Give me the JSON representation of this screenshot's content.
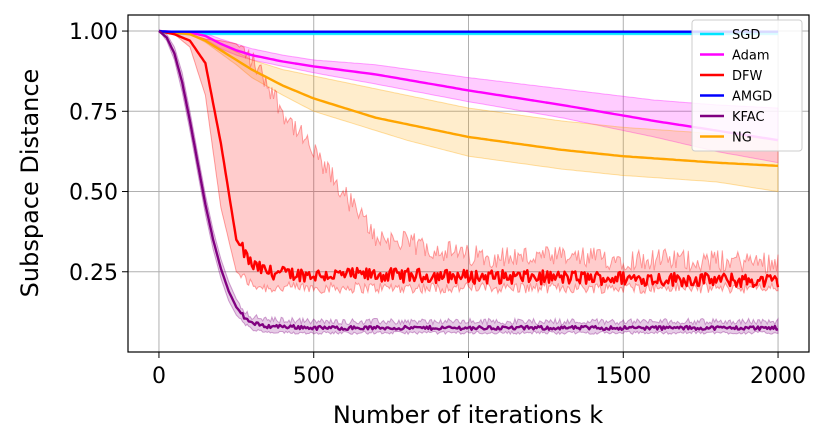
{
  "chart_data": {
    "type": "line",
    "title": "",
    "xlabel": "Number of iterations k",
    "ylabel": "Subspace Distance",
    "xlim": [
      -100,
      2100
    ],
    "ylim": [
      0.0,
      1.05
    ],
    "xticks": [
      0,
      500,
      1000,
      1500,
      2000
    ],
    "xtick_labels": [
      "0",
      "500",
      "1000",
      "1500",
      "2000"
    ],
    "yticks": [
      0.25,
      0.5,
      0.75,
      1.0
    ],
    "ytick_labels": [
      "0.25",
      "0.50",
      "0.75",
      "1.00"
    ],
    "grid": true,
    "legend_position": "top-right",
    "series": [
      {
        "name": "SGD",
        "color": "#00e5ff",
        "x": [
          0,
          20,
          50,
          100,
          500,
          1000,
          1500,
          2000
        ],
        "mean": [
          1.0,
          0.995,
          0.993,
          0.992,
          0.992,
          0.992,
          0.992,
          0.992
        ],
        "lower": [
          1.0,
          0.993,
          0.99,
          0.988,
          0.988,
          0.988,
          0.988,
          0.988
        ],
        "upper": [
          1.0,
          0.998,
          0.996,
          0.995,
          0.995,
          0.995,
          0.995,
          0.995
        ],
        "noise": 0
      },
      {
        "name": "Adam",
        "color": "#ff00ff",
        "x": [
          0,
          100,
          150,
          200,
          250,
          300,
          400,
          500,
          700,
          1000,
          1300,
          1600,
          1800,
          2000
        ],
        "mean": [
          1.0,
          0.995,
          0.985,
          0.96,
          0.94,
          0.925,
          0.905,
          0.89,
          0.865,
          0.815,
          0.77,
          0.72,
          0.69,
          0.66
        ],
        "lower": [
          1.0,
          0.99,
          0.975,
          0.945,
          0.925,
          0.91,
          0.89,
          0.87,
          0.835,
          0.78,
          0.73,
          0.67,
          0.625,
          0.59
        ],
        "upper": [
          1.0,
          0.998,
          0.993,
          0.975,
          0.96,
          0.945,
          0.925,
          0.91,
          0.895,
          0.855,
          0.82,
          0.785,
          0.77,
          0.76
        ],
        "noise": 0
      },
      {
        "name": "DFW",
        "color": "#ff0000",
        "x": [
          0,
          50,
          100,
          150,
          200,
          250,
          300,
          350,
          400,
          500,
          700,
          1000,
          1500,
          2000
        ],
        "mean": [
          1.0,
          0.99,
          0.97,
          0.9,
          0.65,
          0.35,
          0.27,
          0.25,
          0.245,
          0.24,
          0.24,
          0.235,
          0.23,
          0.22
        ],
        "lower": [
          1.0,
          0.99,
          0.95,
          0.8,
          0.45,
          0.25,
          0.21,
          0.2,
          0.2,
          0.2,
          0.2,
          0.2,
          0.2,
          0.2
        ],
        "upper": [
          1.0,
          0.995,
          0.99,
          0.975,
          0.97,
          0.96,
          0.91,
          0.84,
          0.75,
          0.62,
          0.36,
          0.3,
          0.29,
          0.28
        ],
        "noise": 0.022
      },
      {
        "name": "AMGD",
        "color": "#0000ff",
        "x": [
          0,
          10,
          30,
          100,
          500,
          1000,
          1500,
          2000
        ],
        "mean": [
          1.0,
          0.999,
          0.998,
          0.998,
          0.998,
          0.998,
          0.998,
          0.998
        ],
        "lower": [
          1.0,
          0.998,
          0.997,
          0.997,
          0.997,
          0.997,
          0.997,
          0.997
        ],
        "upper": [
          1.0,
          1.0,
          0.999,
          0.999,
          0.999,
          0.999,
          0.999,
          0.999
        ],
        "noise": 0
      },
      {
        "name": "KFAC",
        "color": "#800080",
        "x": [
          0,
          25,
          50,
          75,
          100,
          125,
          150,
          175,
          200,
          225,
          250,
          275,
          300,
          350,
          400,
          500,
          700,
          1000,
          1500,
          2000
        ],
        "mean": [
          1.0,
          0.98,
          0.93,
          0.84,
          0.72,
          0.59,
          0.46,
          0.35,
          0.26,
          0.19,
          0.14,
          0.11,
          0.09,
          0.08,
          0.08,
          0.075,
          0.075,
          0.075,
          0.075,
          0.075
        ],
        "lower": [
          1.0,
          0.97,
          0.91,
          0.81,
          0.69,
          0.56,
          0.43,
          0.32,
          0.23,
          0.16,
          0.115,
          0.09,
          0.07,
          0.06,
          0.06,
          0.06,
          0.06,
          0.06,
          0.06,
          0.06
        ],
        "upper": [
          1.0,
          0.99,
          0.95,
          0.87,
          0.75,
          0.62,
          0.49,
          0.38,
          0.29,
          0.22,
          0.165,
          0.13,
          0.11,
          0.1,
          0.1,
          0.095,
          0.095,
          0.095,
          0.095,
          0.095
        ],
        "noise": 0.006
      },
      {
        "name": "NG",
        "color": "#ffa500",
        "x": [
          0,
          100,
          150,
          200,
          250,
          300,
          400,
          500,
          700,
          800,
          1000,
          1300,
          1500,
          1800,
          2000
        ],
        "mean": [
          1.0,
          0.99,
          0.97,
          0.94,
          0.91,
          0.88,
          0.83,
          0.79,
          0.73,
          0.71,
          0.67,
          0.63,
          0.61,
          0.59,
          0.58
        ],
        "lower": [
          1.0,
          0.99,
          0.965,
          0.93,
          0.895,
          0.855,
          0.8,
          0.75,
          0.69,
          0.66,
          0.61,
          0.57,
          0.55,
          0.53,
          0.5
        ],
        "upper": [
          1.0,
          0.995,
          0.985,
          0.96,
          0.935,
          0.91,
          0.88,
          0.86,
          0.82,
          0.8,
          0.76,
          0.72,
          0.7,
          0.68,
          0.66
        ],
        "noise": 0
      }
    ]
  }
}
